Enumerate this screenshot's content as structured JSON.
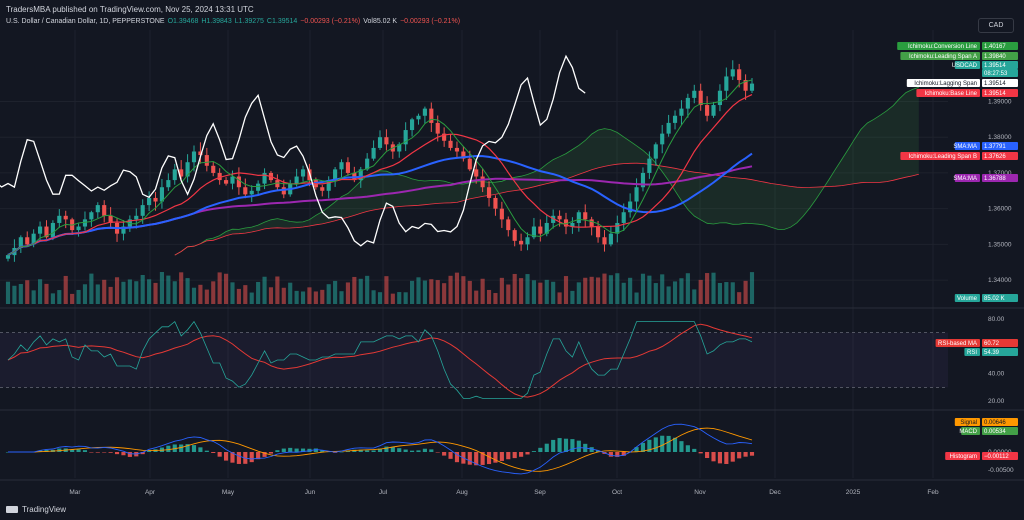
{
  "header": {
    "published": "TradersMBA published on TradingView.com, Nov 25, 2024 13:31 UTC",
    "instrument": "U.S. Dollar / Canadian Dollar, 1D, PEPPERSTONE",
    "ohlc": {
      "o": "O1.39468",
      "h": "H1.39843",
      "l": "L1.39275",
      "c": "C1.39514",
      "chg": "−0.00293 (−0.21%)"
    },
    "vol": "Vol85.02 K",
    "vol_chg": "−0.00293 (−0.21%)",
    "currency": "CAD"
  },
  "footer": {
    "brand": "TradingView"
  },
  "colors": {
    "background": "#131722",
    "grid": "#1e222d",
    "up": "#26a69a",
    "down": "#ef5350",
    "conversion_line": "#2a9d3f",
    "base_line": "#f23645",
    "lagging_span": "#ffffff",
    "sma_blue": "#2962ff",
    "sma_purple": "#9c27b0",
    "rsi": "#7e57c2",
    "rsi_ma": "#e53935",
    "macd": "#ff9800",
    "signal": "#2196f3"
  },
  "chart_data": [
    {
      "type": "candlestick",
      "pane": "price",
      "y_ticks": [
        "1.39000",
        "1.38000",
        "1.37000",
        "1.36000",
        "1.35000",
        "1.34000"
      ],
      "ylim": [
        1.335,
        1.41
      ],
      "x_ticks": [
        "Mar",
        "Apr",
        "May",
        "Jun",
        "Jul",
        "Aug",
        "Sep",
        "Oct",
        "Nov",
        "Dec",
        "2025",
        "Feb"
      ],
      "close_series": [
        1.347,
        1.349,
        1.352,
        1.35,
        1.353,
        1.355,
        1.352,
        1.356,
        1.358,
        1.357,
        1.354,
        1.355,
        1.357,
        1.359,
        1.361,
        1.358,
        1.356,
        1.353,
        1.355,
        1.357,
        1.358,
        1.361,
        1.363,
        1.362,
        1.366,
        1.368,
        1.371,
        1.369,
        1.373,
        1.376,
        1.375,
        1.372,
        1.37,
        1.368,
        1.367,
        1.369,
        1.366,
        1.364,
        1.365,
        1.367,
        1.37,
        1.368,
        1.366,
        1.364,
        1.367,
        1.369,
        1.371,
        1.368,
        1.366,
        1.365,
        1.368,
        1.371,
        1.373,
        1.37,
        1.368,
        1.371,
        1.374,
        1.377,
        1.38,
        1.378,
        1.376,
        1.378,
        1.382,
        1.385,
        1.386,
        1.388,
        1.384,
        1.381,
        1.379,
        1.377,
        1.376,
        1.374,
        1.371,
        1.369,
        1.366,
        1.363,
        1.36,
        1.357,
        1.354,
        1.351,
        1.35,
        1.352,
        1.355,
        1.353,
        1.356,
        1.358,
        1.357,
        1.355,
        1.356,
        1.359,
        1.357,
        1.355,
        1.352,
        1.35,
        1.353,
        1.356,
        1.359,
        1.362,
        1.366,
        1.37,
        1.374,
        1.378,
        1.381,
        1.384,
        1.386,
        1.388,
        1.391,
        1.393,
        1.389,
        1.386,
        1.389,
        1.393,
        1.397,
        1.399,
        1.396,
        1.393,
        1.395
      ],
      "ichimoku": {
        "conversion_line": 1.40167,
        "leading_span_a": 1.3984,
        "lagging_span": 1.39514,
        "base_line": 1.39514,
        "leading_span_b": 1.37626
      },
      "last_price": "1.39514",
      "countdown": "08:27:53",
      "sma_blue": 1.37791,
      "sma_purple": 1.36788,
      "volume_label": "Volume",
      "volume_value": "85.02 K"
    },
    {
      "type": "line",
      "pane": "rsi",
      "y_ticks": [
        "80.00",
        "40.00",
        "20.00"
      ],
      "ylim": [
        15,
        85
      ],
      "series": [
        {
          "name": "RSI-based MA",
          "last": 60.72
        },
        {
          "name": "RSI",
          "last": 54.39
        }
      ],
      "levels": [
        70,
        30
      ]
    },
    {
      "type": "bar",
      "pane": "macd",
      "y_ticks": [
        "0.00000",
        "-0.00500"
      ],
      "series": [
        {
          "name": "Signal",
          "last": 0.00646
        },
        {
          "name": "MACD",
          "last": 0.00534
        },
        {
          "name": "Histogram",
          "last": -0.00112
        }
      ]
    }
  ],
  "tags": {
    "conv": "Ichimoku:Conversion Line",
    "conv_v": "1.40167",
    "spana": "Ichimoku:Leading Span A",
    "spana_v": "1.39840",
    "usdcad": "USDCAD",
    "usdcad_v": "1.39514",
    "countdown": "08:27:53",
    "lag": "Ichimoku:Lagging Span",
    "lag_v": "1.39514",
    "base": "Ichimoku:Base Line",
    "base_v": "1.39514",
    "sma1": "SMA:MA",
    "sma1_v": "1.37791",
    "spanb": "Ichimoku:Leading Span B",
    "spanb_v": "1.37626",
    "sma2": "SMA:MA",
    "sma2_v": "1.36788",
    "vol": "Volume",
    "vol_v": "85.02 K",
    "rsima": "RSI-based MA",
    "rsima_v": "60.72",
    "rsi": "RSI",
    "rsi_v": "54.39",
    "signal": "Signal",
    "signal_v": "0.00646",
    "macd": "MACD",
    "macd_v": "0.00534",
    "hist": "Histogram",
    "hist_v": "−0.00112"
  }
}
